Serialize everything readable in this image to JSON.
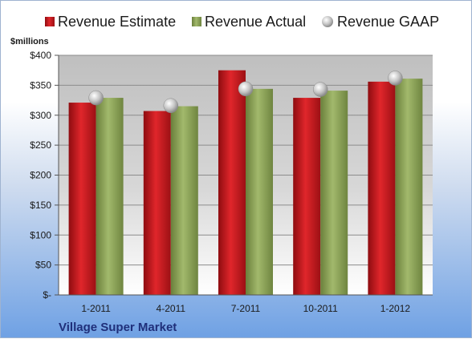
{
  "chart_data": {
    "type": "bar",
    "title": "",
    "company": "Village Super Market",
    "unit_label": "$millions",
    "categories": [
      "1-2011",
      "4-2011",
      "7-2011",
      "10-2011",
      "1-2012"
    ],
    "series": [
      {
        "name": "Revenue Estimate",
        "kind": "bar",
        "color": "#c8161c",
        "values": [
          321,
          307,
          375,
          329,
          356
        ]
      },
      {
        "name": "Revenue Actual",
        "kind": "bar",
        "color": "#8fa65a",
        "values": [
          329,
          315,
          344,
          341,
          361
        ]
      },
      {
        "name": "Revenue GAAP",
        "kind": "marker",
        "color": "#c0c0c0",
        "values": [
          329,
          316,
          344,
          343,
          362
        ]
      }
    ],
    "ylim": [
      0,
      400
    ],
    "yticks": [
      0,
      50,
      100,
      150,
      200,
      250,
      300,
      350,
      400
    ],
    "ytick_labels": [
      "$-",
      "$50",
      "$100",
      "$150",
      "$200",
      "$250",
      "$300",
      "$350",
      "$400"
    ],
    "grid": true,
    "legend_position": "top"
  }
}
